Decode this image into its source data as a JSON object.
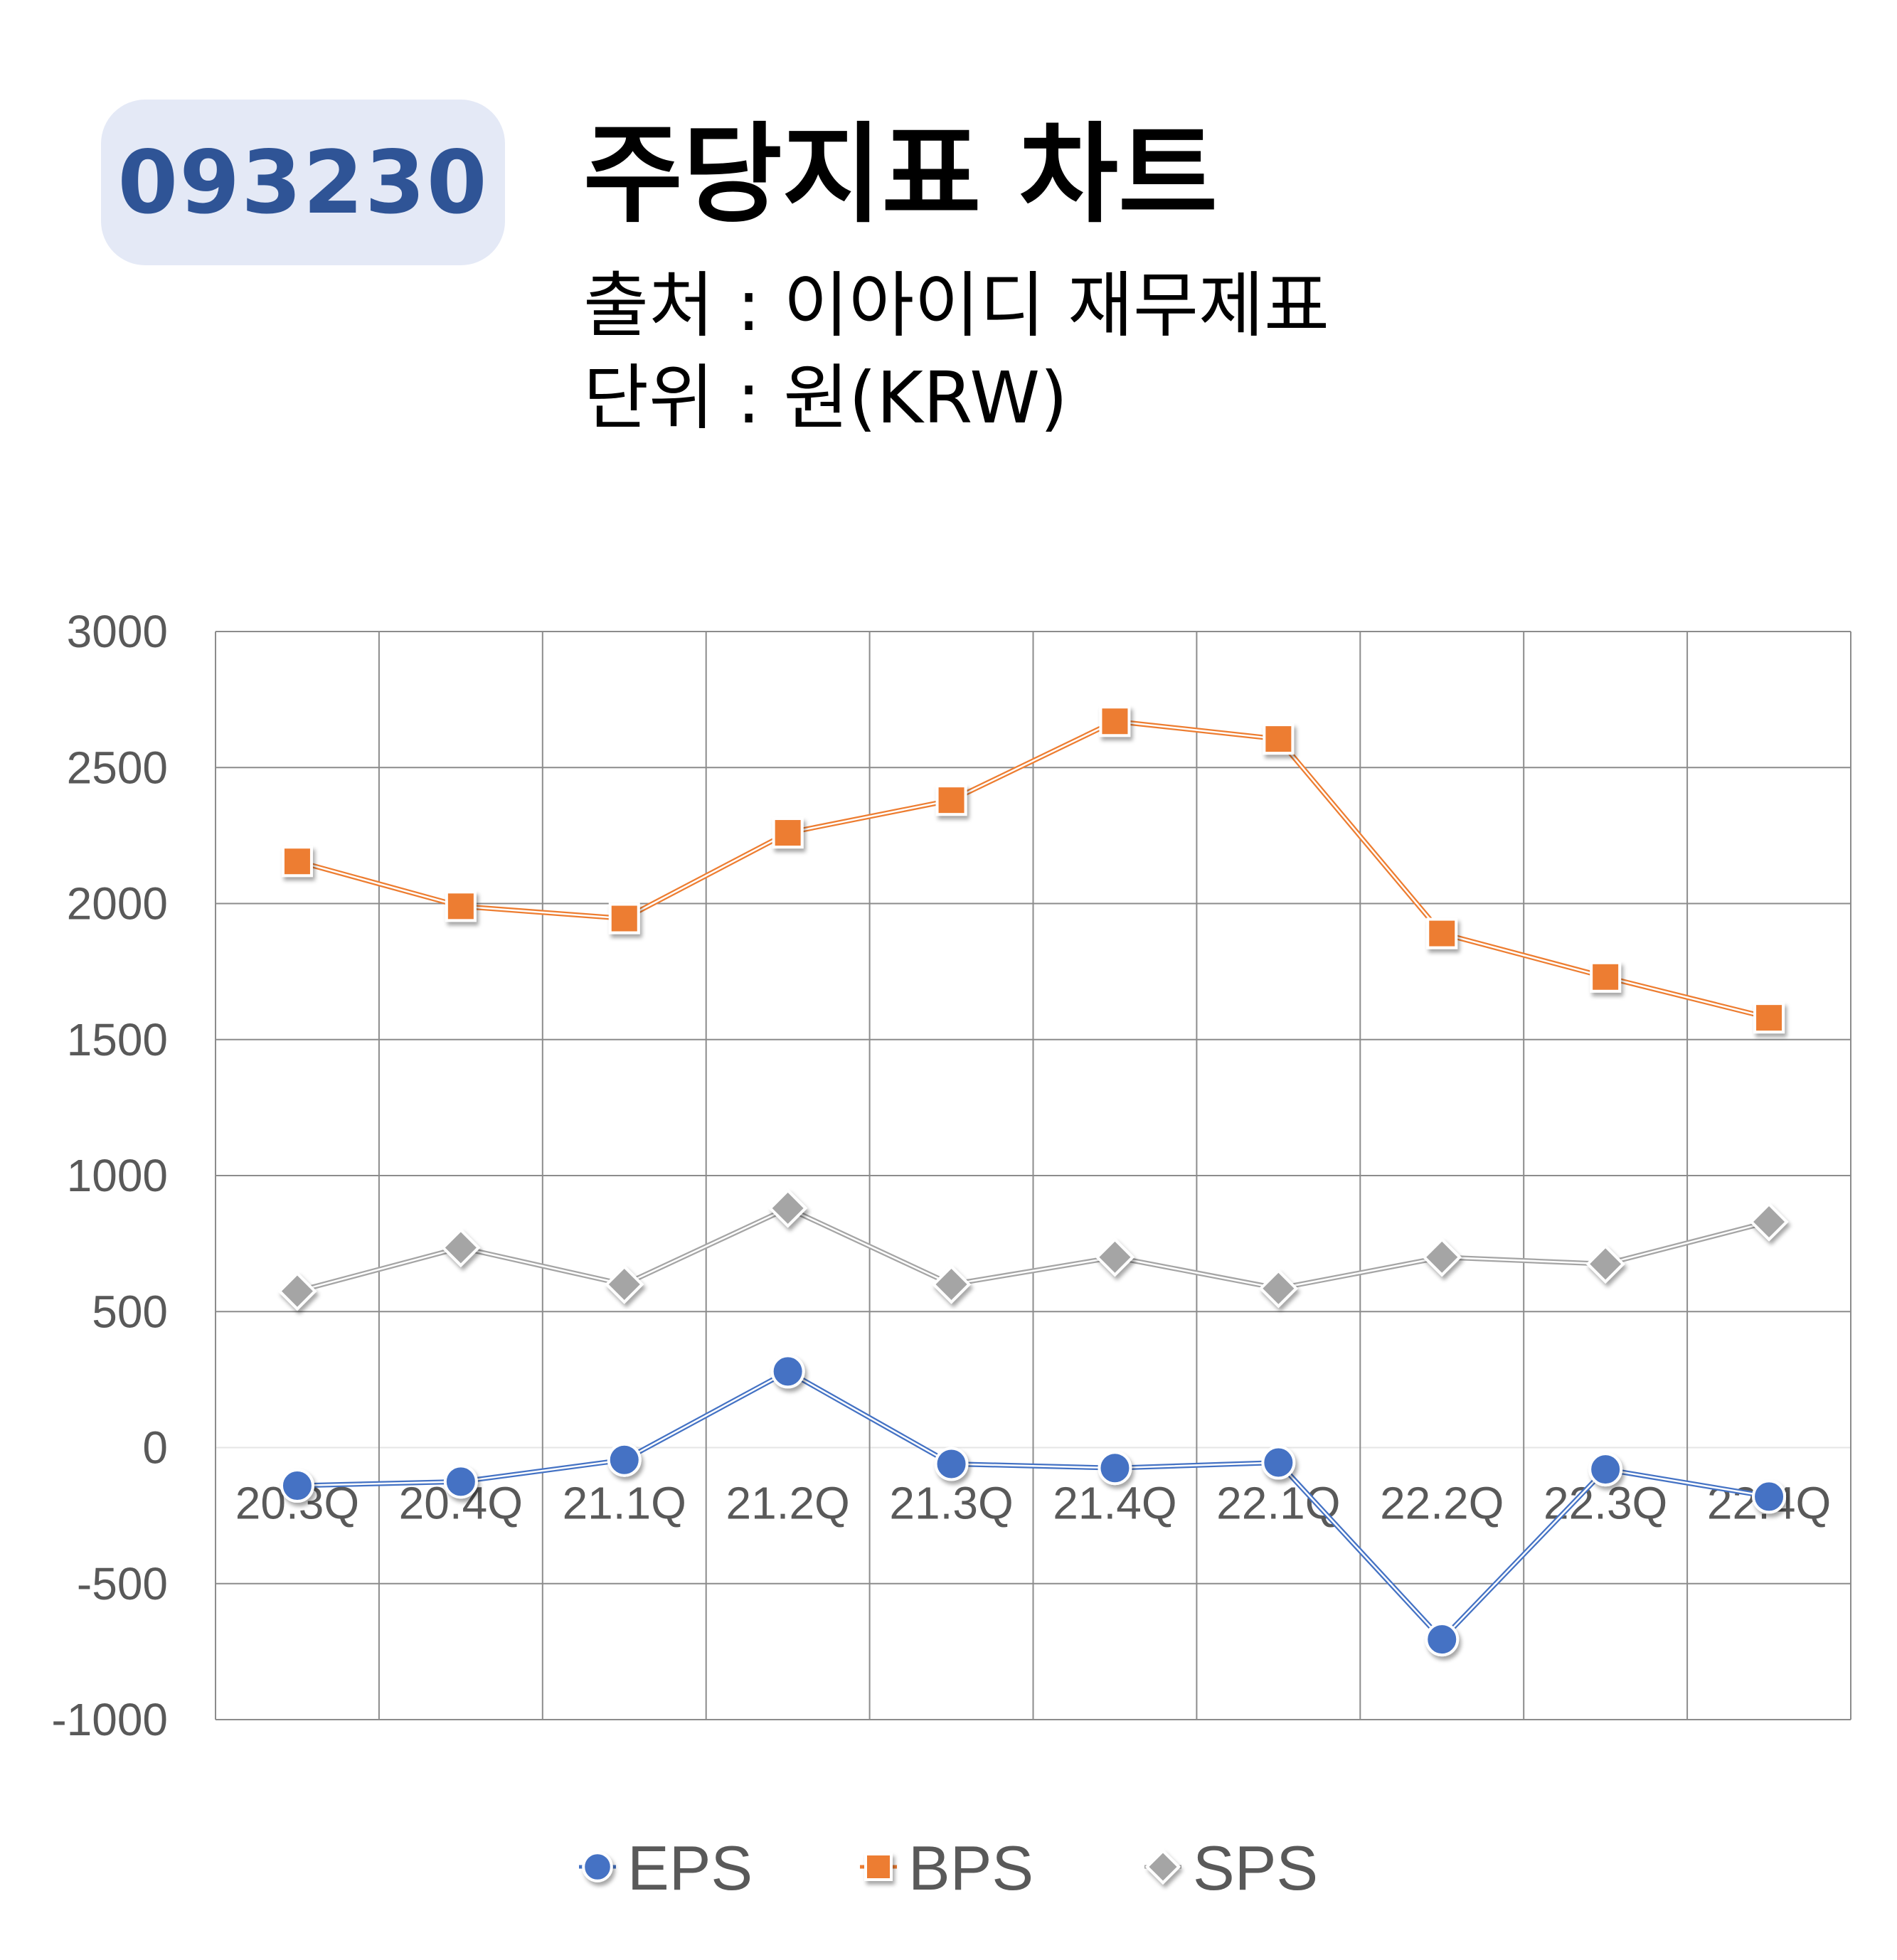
{
  "header": {
    "ticker": "093230",
    "title": "주당지표 차트",
    "source": "출처 : 이아이디 재무제표",
    "unit": "단위 : 원(KRW)"
  },
  "chart_data": {
    "type": "line",
    "categories": [
      "20.3Q",
      "20.4Q",
      "21.1Q",
      "21.2Q",
      "21.3Q",
      "21.4Q",
      "22.1Q",
      "22.2Q",
      "22.3Q",
      "22.4Q"
    ],
    "series": [
      {
        "name": "EPS",
        "marker": "circle",
        "color": "#4472c4",
        "values": [
          -140,
          -125,
          -45,
          280,
          -60,
          -75,
          -55,
          -705,
          -80,
          -180
        ]
      },
      {
        "name": "BPS",
        "marker": "square",
        "color": "#ed7d31",
        "values": [
          2155,
          1990,
          1945,
          2260,
          2380,
          2670,
          2605,
          1890,
          1730,
          1580
        ]
      },
      {
        "name": "SPS",
        "marker": "diamond",
        "color": "#a5a5a5",
        "values": [
          575,
          735,
          600,
          880,
          600,
          700,
          585,
          700,
          675,
          830
        ]
      }
    ],
    "yticks": [
      3000,
      2500,
      2000,
      1500,
      1000,
      500,
      0,
      -500,
      -1000
    ],
    "ylim": [
      -1000,
      3000
    ],
    "grid": true,
    "legend": "bottom",
    "xlabel": "",
    "ylabel": ""
  }
}
